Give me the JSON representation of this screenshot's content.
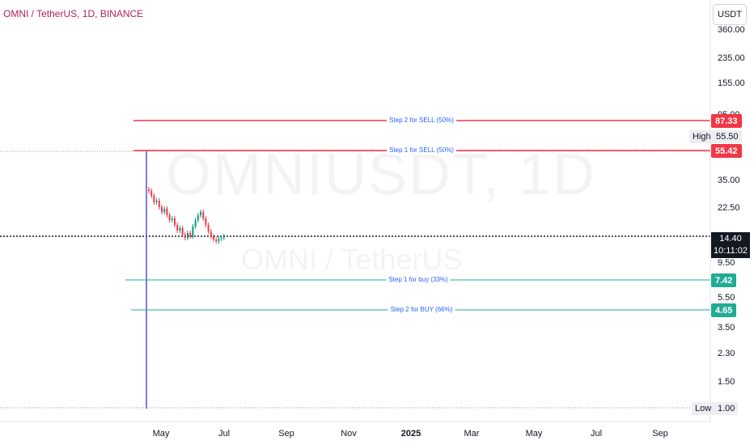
{
  "header": {
    "title": "OMNI / TetherUS, 1D, BINANCE"
  },
  "watermark": {
    "symbol": "OMNIUSDT, 1D",
    "description": "OMNI / TetherUS"
  },
  "price_axis": {
    "currency": "USDT",
    "ticks": [
      "360.00",
      "235.00",
      "155.00",
      "95.00",
      "35.00",
      "22.50",
      "9.50",
      "5.50",
      "3.50",
      "2.30",
      "1.50"
    ]
  },
  "levels": [
    {
      "label": "Step 2 for SELL (50%)",
      "price": "87.33",
      "color": "#f23645"
    },
    {
      "label": "Step 1 for SELL (50%)",
      "price": "55.42",
      "color": "#f23645"
    },
    {
      "label": "Step 1 for buy (33%)",
      "price": "7.42",
      "color": "#22ab94"
    },
    {
      "label": "Step 2 for BUY (66%)",
      "price": "4.65",
      "color": "#22ab94"
    }
  ],
  "high": {
    "label": "High",
    "value": "55.50"
  },
  "low": {
    "label": "Low",
    "value": "1.00"
  },
  "current": {
    "price": "14.40",
    "countdown": "10:11:02"
  },
  "time_axis": {
    "ticks": [
      "May",
      "Jul",
      "Sep",
      "Nov",
      "2025",
      "Mar",
      "May",
      "Jul",
      "Sep"
    ]
  },
  "colors": {
    "up": "#089981",
    "down": "#f23645",
    "accent": "#2962ff",
    "title": "#b01e5a"
  }
}
